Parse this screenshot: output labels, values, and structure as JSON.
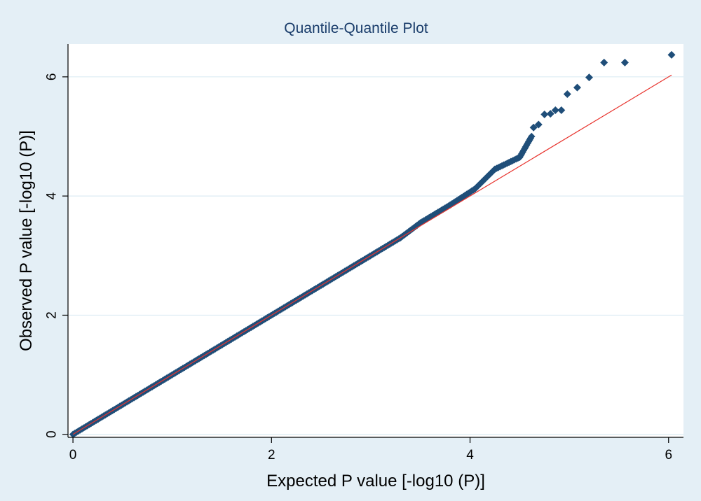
{
  "chart_data": {
    "type": "scatter",
    "title": "Quantile-Quantile Plot",
    "xlabel": "Expected P value [-log10 (P)]",
    "ylabel": "Observed P value [-log10 (P)]",
    "xlim": [
      -0.05,
      6.15
    ],
    "ylim": [
      -0.05,
      6.55
    ],
    "x_ticks": [
      0,
      2,
      4,
      6
    ],
    "y_ticks": [
      0,
      2,
      4,
      6
    ],
    "grid": true,
    "colors": {
      "background": "#e4eff6",
      "plot_bg": "#ffffff",
      "points": "#1f4e79",
      "reference_line": "#e8342e",
      "grid": "#dcebf3"
    },
    "reference_line": {
      "from": [
        0,
        0
      ],
      "to": [
        6.03,
        6.03
      ]
    },
    "body_segments": [
      {
        "x": [
          0,
          3.3
        ],
        "y": [
          0,
          3.3
        ]
      },
      {
        "x": [
          3.3,
          3.5
        ],
        "y": [
          3.3,
          3.55
        ]
      },
      {
        "x": [
          3.5,
          3.8
        ],
        "y": [
          3.55,
          3.85
        ]
      },
      {
        "x": [
          3.8,
          4.05
        ],
        "y": [
          3.85,
          4.12
        ]
      },
      {
        "x": [
          4.05,
          4.25
        ],
        "y": [
          4.12,
          4.45
        ]
      },
      {
        "x": [
          4.25,
          4.5
        ],
        "y": [
          4.45,
          4.65
        ]
      },
      {
        "x": [
          4.5,
          4.62
        ],
        "y": [
          4.65,
          5.0
        ]
      }
    ],
    "series": [
      {
        "x": [
          4.64,
          4.69,
          4.75,
          4.81,
          4.86,
          4.92,
          4.98,
          5.08,
          5.2,
          5.35,
          5.56,
          6.03
        ],
        "y": [
          5.15,
          5.2,
          5.37,
          5.38,
          5.44,
          5.44,
          5.71,
          5.82,
          5.99,
          6.24,
          6.24,
          6.37
        ]
      }
    ]
  }
}
